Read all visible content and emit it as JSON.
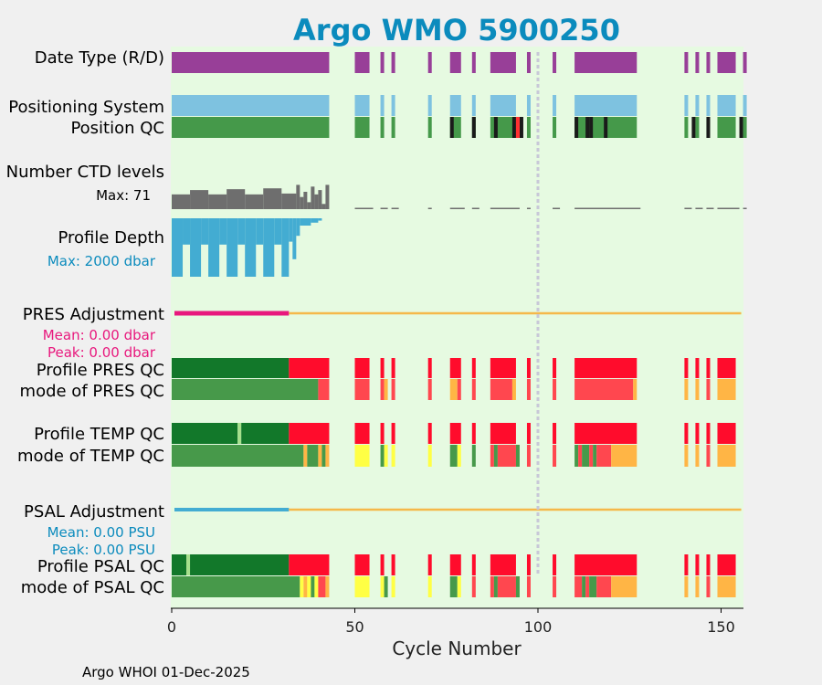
{
  "title": "Argo WMO 5900250",
  "footer": "Argo WHOI 01-Dec-2025",
  "chart_data": {
    "type": "timeline-qc",
    "title": "Argo WMO 5900250",
    "xlabel": "Cycle Number",
    "xlim": [
      0,
      156
    ],
    "xticks": [
      0,
      50,
      100,
      150
    ],
    "vline_at": 100,
    "row_labels": {
      "date_type": "Date Type (R/D)",
      "positioning": "Positioning System",
      "position_qc": "Position QC",
      "ctd_levels": "Number CTD levels",
      "profile_depth": "Profile Depth",
      "pres_adjustment": "PRES Adjustment",
      "profile_pres_qc": "Profile PRES QC",
      "mode_pres_qc": "mode of PRES QC",
      "profile_temp_qc": "Profile TEMP QC",
      "mode_temp_qc": "mode of TEMP QC",
      "psal_adjustment": "PSAL Adjustment",
      "profile_psal_qc": "Profile PSAL QC",
      "mode_psal_qc": "mode of PSAL QC"
    },
    "annotations": {
      "ctd_max": "Max: 71",
      "depth_max": "Max: 2000 dbar",
      "pres_mean": "Mean: 0.00 dbar",
      "pres_peak": "Peak: 0.00 dbar",
      "psal_mean": "Mean: 0.00 PSU",
      "psal_peak": "Peak: 0.00 PSU"
    },
    "cycle_groups": [
      [
        0,
        43
      ],
      [
        50,
        54
      ],
      [
        57,
        58
      ],
      [
        60,
        61
      ],
      [
        70,
        70
      ],
      [
        76,
        79
      ],
      [
        82,
        83
      ],
      [
        87,
        94
      ],
      [
        97,
        97
      ],
      [
        104,
        105
      ],
      [
        110,
        127
      ],
      [
        140,
        141
      ],
      [
        143,
        144
      ],
      [
        146,
        147
      ],
      [
        149,
        154
      ],
      [
        156,
        156
      ]
    ],
    "date_type": [
      [
        0,
        43,
        "D"
      ],
      [
        50,
        54,
        "D"
      ],
      [
        57,
        58,
        "D"
      ],
      [
        60,
        61,
        "D"
      ],
      [
        70,
        70,
        "D"
      ],
      [
        76,
        79,
        "D"
      ],
      [
        82,
        83,
        "D"
      ],
      [
        87,
        94,
        "D"
      ],
      [
        97,
        97,
        "D"
      ],
      [
        104,
        105,
        "D"
      ],
      [
        110,
        127,
        "D"
      ],
      [
        140,
        141,
        "D"
      ],
      [
        143,
        144,
        "D"
      ],
      [
        146,
        147,
        "D"
      ],
      [
        149,
        154,
        "D"
      ],
      [
        156,
        156,
        "D"
      ]
    ],
    "position_qc_flag4": [
      76,
      82,
      88,
      93,
      95,
      110,
      113,
      114,
      118,
      142,
      146,
      155
    ],
    "position_qc_flag3": [
      94
    ],
    "ctd_levels": [
      [
        0,
        5,
        17
      ],
      [
        5,
        10,
        22
      ],
      [
        10,
        15,
        17
      ],
      [
        15,
        20,
        23
      ],
      [
        20,
        25,
        17
      ],
      [
        25,
        30,
        24
      ],
      [
        30,
        34,
        18
      ],
      [
        34,
        35,
        28
      ],
      [
        35,
        36,
        14
      ],
      [
        36,
        37,
        20
      ],
      [
        37,
        38,
        8
      ],
      [
        38,
        39,
        26
      ],
      [
        39,
        40,
        17
      ],
      [
        40,
        41,
        22
      ],
      [
        41,
        42,
        6
      ],
      [
        42,
        43,
        28
      ]
    ],
    "ctd_levels_max": 71,
    "profile_depth": [
      [
        0,
        3,
        2000
      ],
      [
        3,
        5,
        900
      ],
      [
        5,
        8,
        2000
      ],
      [
        8,
        10,
        900
      ],
      [
        10,
        13,
        2000
      ],
      [
        13,
        15,
        900
      ],
      [
        15,
        18,
        2000
      ],
      [
        18,
        20,
        900
      ],
      [
        20,
        23,
        2000
      ],
      [
        23,
        25,
        900
      ],
      [
        25,
        28,
        2000
      ],
      [
        28,
        30,
        900
      ],
      [
        30,
        32,
        2000
      ],
      [
        32,
        33,
        800
      ],
      [
        33,
        34,
        1400
      ],
      [
        34,
        35,
        600
      ],
      [
        35,
        38,
        250
      ],
      [
        38,
        40,
        150
      ],
      [
        40,
        41,
        80
      ]
    ],
    "profile_depth_max": 2000,
    "pres_adjustment": {
      "mean": 0.0,
      "peak": 0.0,
      "adjusted_until_cycle": 32,
      "units": "dbar"
    },
    "psal_adjustment": {
      "mean": 0.0,
      "peak": 0.0,
      "adjusted_until_cycle": 32,
      "units": "PSU"
    },
    "profile_pres_qc": [
      [
        0,
        32,
        "A"
      ],
      [
        32,
        156,
        "F"
      ]
    ],
    "mode_pres_qc": [
      [
        0,
        40,
        "1"
      ],
      [
        40,
        43,
        "4"
      ],
      [
        50,
        54,
        "4"
      ],
      [
        57,
        58,
        "4"
      ],
      [
        58,
        59,
        "3"
      ],
      [
        60,
        61,
        "4"
      ],
      [
        70,
        70,
        "4"
      ],
      [
        76,
        78,
        "3"
      ],
      [
        78,
        79,
        "4"
      ],
      [
        82,
        83,
        "4"
      ],
      [
        87,
        93,
        "4"
      ],
      [
        93,
        94,
        "3"
      ],
      [
        97,
        97,
        "4"
      ],
      [
        104,
        105,
        "4"
      ],
      [
        110,
        126,
        "4"
      ],
      [
        126,
        127,
        "3"
      ],
      [
        140,
        141,
        "3"
      ],
      [
        143,
        144,
        "3"
      ],
      [
        146,
        147,
        "4"
      ],
      [
        149,
        154,
        "3"
      ]
    ],
    "profile_temp_qc": [
      [
        0,
        18,
        "A"
      ],
      [
        18,
        19,
        "B"
      ],
      [
        19,
        32,
        "A"
      ],
      [
        32,
        156,
        "F"
      ]
    ],
    "mode_temp_qc": [
      [
        0,
        36,
        "1"
      ],
      [
        36,
        37,
        "3"
      ],
      [
        37,
        40,
        "1"
      ],
      [
        40,
        41,
        "3"
      ],
      [
        41,
        42,
        "1"
      ],
      [
        42,
        43,
        "3"
      ],
      [
        50,
        54,
        "2"
      ],
      [
        57,
        58,
        "1"
      ],
      [
        58,
        59,
        "2"
      ],
      [
        60,
        61,
        "2"
      ],
      [
        70,
        70,
        "2"
      ],
      [
        76,
        78,
        "1"
      ],
      [
        78,
        79,
        "2"
      ],
      [
        82,
        83,
        "1"
      ],
      [
        87,
        88,
        "4"
      ],
      [
        88,
        89,
        "1"
      ],
      [
        89,
        94,
        "4"
      ],
      [
        94,
        95,
        "1"
      ],
      [
        97,
        97,
        "4"
      ],
      [
        104,
        105,
        "4"
      ],
      [
        110,
        111,
        "1"
      ],
      [
        111,
        112,
        "4"
      ],
      [
        112,
        114,
        "1"
      ],
      [
        114,
        115,
        "4"
      ],
      [
        115,
        116,
        "1"
      ],
      [
        116,
        120,
        "4"
      ],
      [
        120,
        127,
        "3"
      ],
      [
        140,
        141,
        "3"
      ],
      [
        143,
        144,
        "3"
      ],
      [
        146,
        147,
        "4"
      ],
      [
        149,
        154,
        "3"
      ]
    ],
    "profile_psal_qc": [
      [
        0,
        4,
        "A"
      ],
      [
        4,
        5,
        "B"
      ],
      [
        5,
        32,
        "A"
      ],
      [
        32,
        156,
        "F"
      ]
    ],
    "mode_psal_qc": [
      [
        0,
        35,
        "1"
      ],
      [
        35,
        36,
        "2"
      ],
      [
        36,
        37,
        "3"
      ],
      [
        37,
        38,
        "2"
      ],
      [
        38,
        39,
        "1"
      ],
      [
        39,
        40,
        "2"
      ],
      [
        40,
        42,
        "4"
      ],
      [
        42,
        43,
        "3"
      ],
      [
        50,
        54,
        "2"
      ],
      [
        57,
        58,
        "2"
      ],
      [
        58,
        59,
        "1"
      ],
      [
        60,
        61,
        "2"
      ],
      [
        70,
        70,
        "2"
      ],
      [
        76,
        78,
        "1"
      ],
      [
        78,
        79,
        "2"
      ],
      [
        82,
        83,
        "4"
      ],
      [
        87,
        88,
        "4"
      ],
      [
        88,
        89,
        "1"
      ],
      [
        89,
        94,
        "4"
      ],
      [
        94,
        95,
        "1"
      ],
      [
        97,
        97,
        "4"
      ],
      [
        104,
        105,
        "4"
      ],
      [
        110,
        112,
        "4"
      ],
      [
        112,
        113,
        "1"
      ],
      [
        113,
        114,
        "4"
      ],
      [
        114,
        116,
        "1"
      ],
      [
        116,
        120,
        "4"
      ],
      [
        120,
        127,
        "3"
      ],
      [
        140,
        141,
        "3"
      ],
      [
        143,
        144,
        "3"
      ],
      [
        146,
        147,
        "4"
      ],
      [
        149,
        154,
        "3"
      ]
    ],
    "colors": {
      "title": "#0b8bbd",
      "plot_bg": "#e6fae1",
      "date_D": "#983f98",
      "positioning": "#7ec2e0",
      "posqc_ok": "#45994a",
      "posqc_bad": "#1a1a1a",
      "posqc_warn": "#ff3030",
      "ctd": "#6e6e6e",
      "depth": "#43acd2",
      "pres_adj": "#e8187d",
      "psal_adj": "#43acd2",
      "adj_none": "#f5b84a",
      "vline": "#c8c8d8",
      "qc_A": "#12782a",
      "qc_B": "#a6e08c",
      "qc_F": "#ff0c2c",
      "mode_1": "#47994a",
      "mode_2": "#ffff44",
      "mode_3": "#ffb545",
      "mode_4": "#ff474f",
      "ann_ctd": "#000000",
      "ann_depth": "#0b8bbd",
      "ann_pres": "#e8187d",
      "ann_psal": "#0b8bbd"
    }
  }
}
